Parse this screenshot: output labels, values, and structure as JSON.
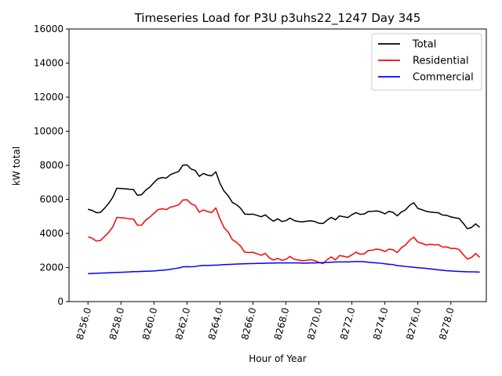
{
  "chart_data": {
    "type": "line",
    "title": "Timeseries Load for P3U p3uhs22_1247  Day 345",
    "xlabel": "Hour of Year",
    "ylabel": "kW total",
    "xlim": [
      8254.85,
      8280.15
    ],
    "ylim": [
      0,
      16000
    ],
    "grid": false,
    "legend_position": "top-right",
    "xticks": [
      8256,
      8258,
      8260,
      8262,
      8264,
      8266,
      8268,
      8270,
      8272,
      8274,
      8276,
      8278
    ],
    "xtick_labels": [
      "8256.0",
      "8258.0",
      "8260.0",
      "8262.0",
      "8264.0",
      "8266.0",
      "8268.0",
      "8270.0",
      "8272.0",
      "8274.0",
      "8276.0",
      "8278.0"
    ],
    "yticks": [
      0,
      2000,
      4000,
      6000,
      8000,
      10000,
      12000,
      14000,
      16000
    ],
    "ytick_labels": [
      "0",
      "2000",
      "4000",
      "6000",
      "8000",
      "10000",
      "12000",
      "14000",
      "16000"
    ],
    "x_start": 8256,
    "x_step": 0.25,
    "series": [
      {
        "name": "Total",
        "color": "#000000",
        "values": [
          5420,
          5350,
          5220,
          5230,
          5480,
          5760,
          6120,
          6650,
          6640,
          6620,
          6590,
          6580,
          6240,
          6270,
          6540,
          6720,
          6990,
          7220,
          7280,
          7250,
          7450,
          7550,
          7640,
          8000,
          8030,
          7780,
          7700,
          7350,
          7520,
          7420,
          7380,
          7620,
          6940,
          6480,
          6210,
          5820,
          5690,
          5480,
          5140,
          5120,
          5130,
          5060,
          4980,
          5090,
          4880,
          4720,
          4860,
          4700,
          4750,
          4900,
          4760,
          4700,
          4680,
          4720,
          4740,
          4700,
          4600,
          4580,
          4780,
          4940,
          4800,
          5030,
          4980,
          4930,
          5100,
          5220,
          5120,
          5140,
          5290,
          5300,
          5320,
          5260,
          5150,
          5300,
          5230,
          5030,
          5260,
          5380,
          5650,
          5800,
          5470,
          5390,
          5300,
          5260,
          5230,
          5210,
          5080,
          5060,
          4970,
          4920,
          4880,
          4600,
          4280,
          4350,
          4560,
          4360
        ]
      },
      {
        "name": "Residential",
        "color": "#ff0000",
        "values": [
          3800,
          3720,
          3560,
          3580,
          3820,
          4060,
          4380,
          4940,
          4920,
          4900,
          4860,
          4840,
          4480,
          4490,
          4780,
          4960,
          5180,
          5400,
          5450,
          5400,
          5540,
          5600,
          5680,
          5960,
          5980,
          5740,
          5640,
          5240,
          5380,
          5280,
          5230,
          5500,
          4860,
          4340,
          4080,
          3640,
          3480,
          3260,
          2900,
          2880,
          2890,
          2800,
          2720,
          2830,
          2560,
          2440,
          2540,
          2420,
          2480,
          2650,
          2480,
          2440,
          2400,
          2420,
          2460,
          2400,
          2300,
          2230,
          2460,
          2620,
          2450,
          2700,
          2660,
          2600,
          2740,
          2900,
          2780,
          2800,
          3000,
          3020,
          3080,
          3040,
          2940,
          3080,
          3040,
          2880,
          3160,
          3320,
          3600,
          3780,
          3490,
          3420,
          3320,
          3360,
          3330,
          3340,
          3200,
          3210,
          3120,
          3120,
          3060,
          2760,
          2500,
          2590,
          2820,
          2600
        ]
      },
      {
        "name": "Commercial",
        "color": "#0000ff",
        "values": [
          1640,
          1650,
          1660,
          1670,
          1680,
          1690,
          1700,
          1710,
          1720,
          1730,
          1740,
          1760,
          1760,
          1770,
          1780,
          1790,
          1800,
          1820,
          1840,
          1860,
          1890,
          1940,
          1970,
          2040,
          2050,
          2040,
          2060,
          2100,
          2120,
          2120,
          2130,
          2140,
          2150,
          2170,
          2180,
          2190,
          2200,
          2210,
          2220,
          2230,
          2230,
          2240,
          2240,
          2250,
          2260,
          2260,
          2270,
          2270,
          2270,
          2270,
          2270,
          2270,
          2260,
          2260,
          2270,
          2270,
          2280,
          2290,
          2300,
          2310,
          2320,
          2330,
          2330,
          2330,
          2340,
          2350,
          2350,
          2340,
          2310,
          2290,
          2270,
          2250,
          2220,
          2190,
          2170,
          2110,
          2090,
          2060,
          2040,
          2010,
          1990,
          1970,
          1950,
          1920,
          1890,
          1860,
          1840,
          1810,
          1800,
          1780,
          1770,
          1760,
          1750,
          1750,
          1740,
          1730
        ]
      }
    ]
  }
}
